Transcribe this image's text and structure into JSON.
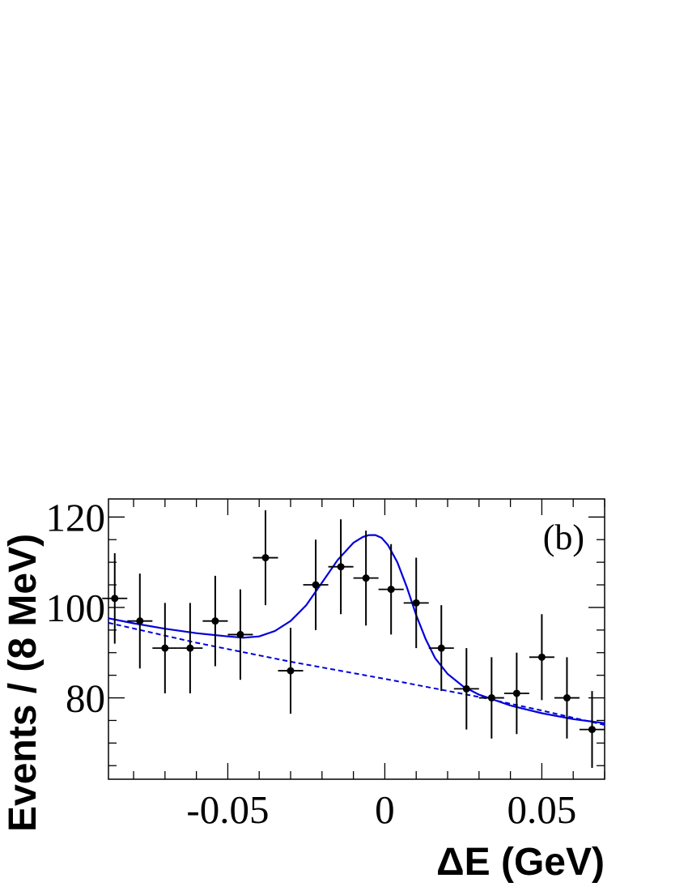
{
  "chart_data": {
    "type": "scatter",
    "title": "",
    "panel_label": "(b)",
    "xlabel": "ΔE (GeV)",
    "ylabel": "Events / (8 MeV)",
    "xlim": [
      -0.088,
      0.07
    ],
    "ylim": [
      62,
      124
    ],
    "xticks": [
      -0.05,
      0,
      0.05
    ],
    "xtick_labels": [
      "-0.05",
      "0",
      "0.05"
    ],
    "yticks": [
      80,
      100,
      120
    ],
    "ytick_labels": [
      "80",
      "100",
      "120"
    ],
    "grid": false,
    "series": [
      {
        "kind": "points_with_errors",
        "bin_half_width": 0.004,
        "x": [
          -0.086,
          -0.078,
          -0.07,
          -0.062,
          -0.054,
          -0.046,
          -0.038,
          -0.03,
          -0.022,
          -0.014,
          -0.006,
          0.002,
          0.01,
          0.018,
          0.026,
          0.034,
          0.042,
          0.05,
          0.058,
          0.066
        ],
        "y": [
          102,
          97,
          91,
          91,
          97,
          94,
          111,
          86,
          105,
          109,
          106.5,
          104,
          101,
          91,
          82,
          80,
          81,
          89,
          80,
          73
        ],
        "yerr": [
          10,
          10.5,
          10,
          10,
          10,
          10,
          10.5,
          9.5,
          10,
          10.5,
          10.5,
          10,
          10,
          9.5,
          9,
          9,
          9,
          9.5,
          9,
          8.5
        ]
      },
      {
        "kind": "curve_solid",
        "color": "#0000dd",
        "x": [
          -0.088,
          -0.08,
          -0.07,
          -0.06,
          -0.05,
          -0.045,
          -0.04,
          -0.035,
          -0.03,
          -0.025,
          -0.02,
          -0.015,
          -0.01,
          -0.007,
          -0.005,
          -0.003,
          -0.001,
          0.001,
          0.004,
          0.007,
          0.01,
          0.013,
          0.016,
          0.02,
          0.025,
          0.03,
          0.04,
          0.05,
          0.06,
          0.07
        ],
        "y": [
          97.6,
          96.5,
          95.3,
          94.3,
          93.6,
          93.3,
          93.6,
          94.8,
          97.0,
          100.5,
          105.5,
          110.5,
          114.3,
          115.6,
          116.0,
          116.0,
          115.4,
          113.8,
          110.0,
          104.5,
          98.3,
          93.0,
          88.8,
          85.3,
          82.5,
          80.7,
          78.3,
          76.6,
          75.3,
          74.4
        ]
      },
      {
        "kind": "curve_dashed",
        "color": "#0000dd",
        "x": [
          -0.088,
          -0.06,
          -0.03,
          0.0,
          0.03,
          0.05,
          0.07
        ],
        "y": [
          96.6,
          92.2,
          88.0,
          84.2,
          80.2,
          77.2,
          74.0
        ]
      }
    ]
  }
}
